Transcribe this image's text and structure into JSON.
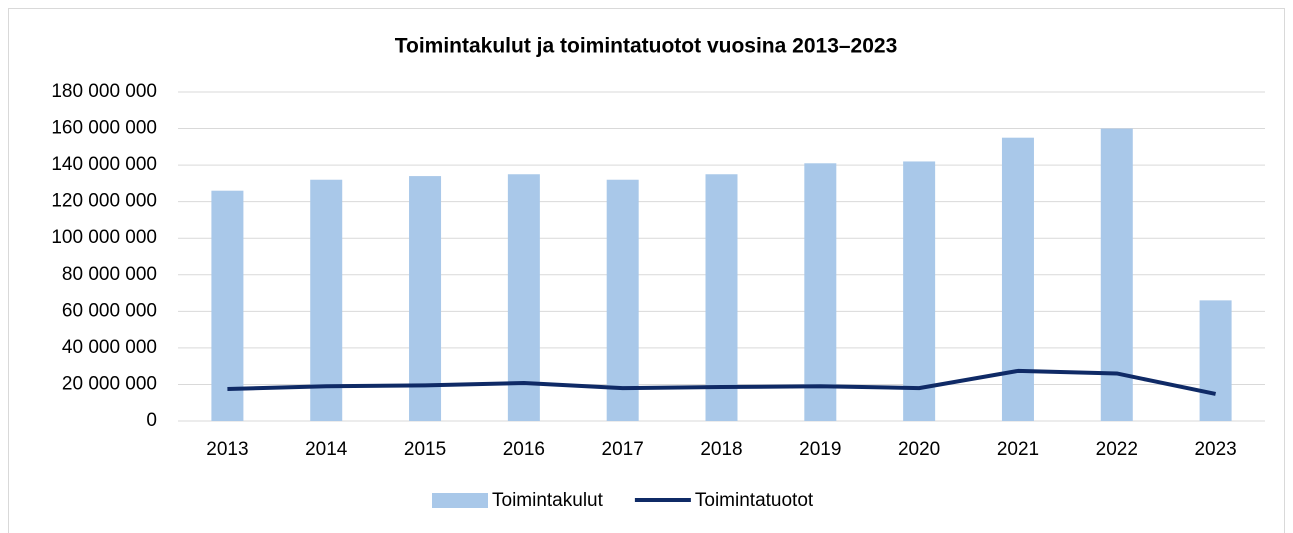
{
  "chart_data": {
    "type": "combo",
    "title": "Toimintakulut ja toimintatuotot vuosina 2013–2023",
    "categories": [
      "2013",
      "2014",
      "2015",
      "2016",
      "2017",
      "2018",
      "2019",
      "2020",
      "2021",
      "2022",
      "2023"
    ],
    "series": [
      {
        "name": "Toimintakulut",
        "type": "bar",
        "color": "#a9c8e9",
        "values": [
          126000000,
          132000000,
          134000000,
          135000000,
          132000000,
          135000000,
          141000000,
          142000000,
          155000000,
          160000000,
          66000000
        ]
      },
      {
        "name": "Toimintatuotot",
        "type": "line",
        "color": "#0f2a66",
        "values": [
          17500000,
          19000000,
          19500000,
          20800000,
          18000000,
          18600000,
          19000000,
          18000000,
          27400000,
          26000000,
          14800000
        ]
      }
    ],
    "ylim": [
      0,
      180000000
    ],
    "yticks": [
      0,
      {
        "value": 20000000,
        "label": "20 000 000"
      },
      {
        "value": 40000000,
        "label": "40 000 000"
      },
      {
        "value": 60000000,
        "label": "60 000 000"
      },
      {
        "value": 80000000,
        "label": "80 000 000"
      },
      {
        "value": 100000000,
        "label": "100 000 000"
      },
      {
        "value": 120000000,
        "label": "120 000 000"
      },
      {
        "value": 140000000,
        "label": "140 000 000"
      },
      {
        "value": 160000000,
        "label": "160 000 000"
      },
      {
        "value": 180000000,
        "label": "180 000 000"
      }
    ],
    "grid": true,
    "legend": "bottom"
  }
}
